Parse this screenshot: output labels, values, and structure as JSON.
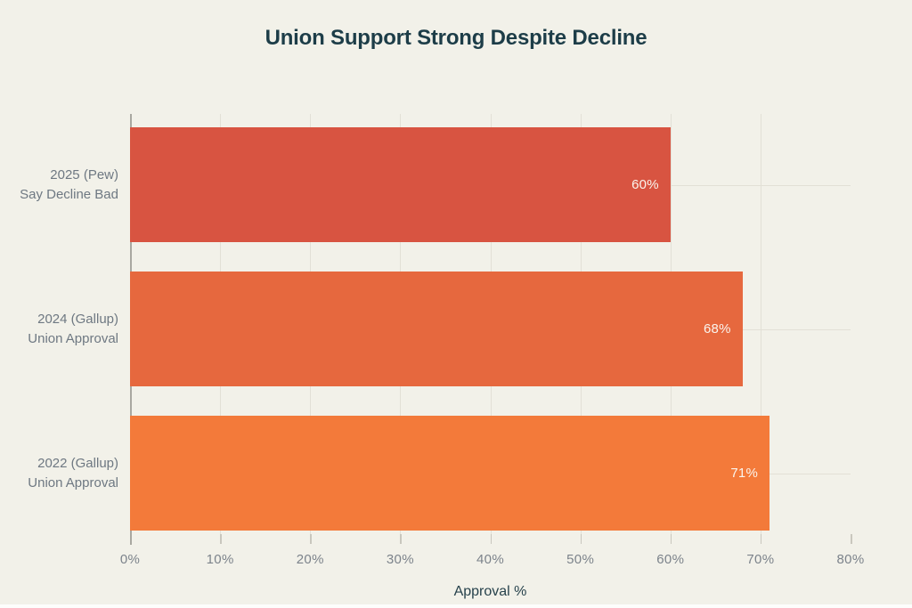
{
  "page": {
    "background_color": "#f2f1e9",
    "title_color": "#1d3d48",
    "grid_color": "#e2e0d6",
    "axis_line_color": "#a9a8a1",
    "category_label_color": "#6e7882",
    "tick_label_color": "#7c838b",
    "value_label_color": "#faf5ee"
  },
  "chart_data": {
    "type": "bar",
    "orientation": "horizontal",
    "title": "Union Support Strong Despite Decline",
    "xlabel": "Approval %",
    "xlim": [
      0,
      80
    ],
    "xticks": [
      0,
      10,
      20,
      30,
      40,
      50,
      60,
      70,
      80
    ],
    "xtick_labels": [
      "0%",
      "10%",
      "20%",
      "30%",
      "40%",
      "50%",
      "60%",
      "70%",
      "80%"
    ],
    "gridline_ticks": [
      10,
      20,
      30,
      40,
      50,
      60,
      70
    ],
    "grid": "vertical gridlines at ticks, horizontal guide through each bar center",
    "legend": null,
    "bars": [
      {
        "label_lines": [
          "2025 (Pew)",
          "Say Decline Bad"
        ],
        "value": 60,
        "value_label": "60%",
        "color": "#d85441"
      },
      {
        "label_lines": [
          "2024 (Gallup)",
          "Union Approval"
        ],
        "value": 68,
        "value_label": "68%",
        "color": "#e6683e"
      },
      {
        "label_lines": [
          "2022 (Gallup)",
          "Union Approval"
        ],
        "value": 71,
        "value_label": "71%",
        "color": "#f37a3a"
      }
    ]
  }
}
